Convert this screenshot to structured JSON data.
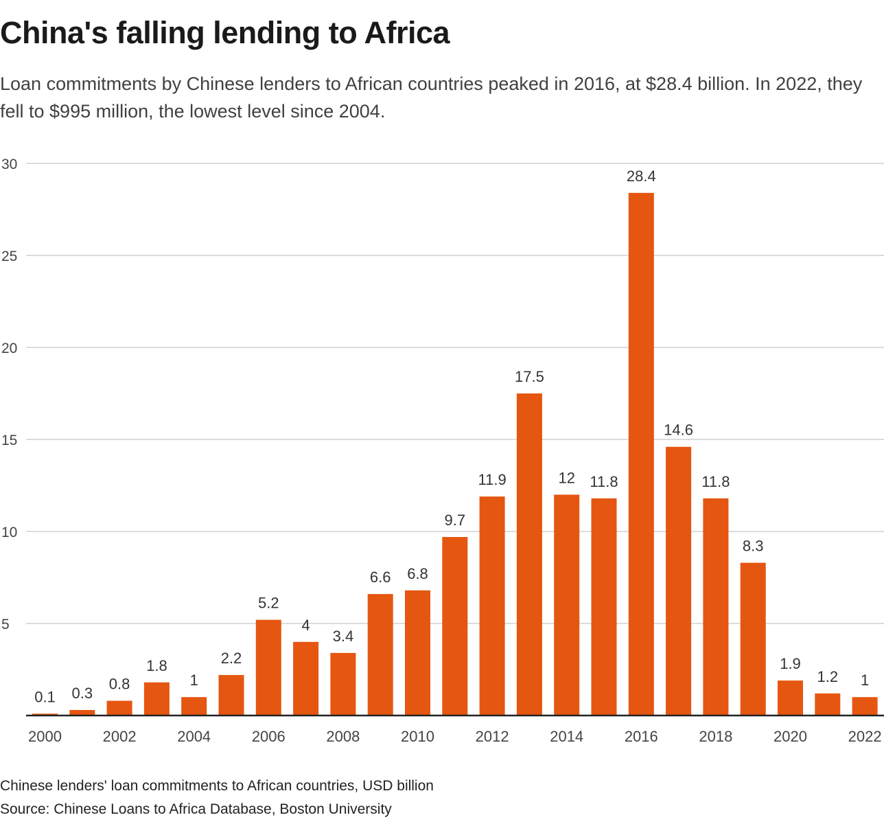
{
  "title": "China's falling lending to Africa",
  "subtitle": "Loan commitments by Chinese lenders to African countries peaked in 2016, at $28.4 billion. In 2022, they fell to $995 million, the lowest level since 2004.",
  "footnote": "Chinese lenders' loan commitments to African countries, USD billion",
  "source": "Source: Chinese Loans to Africa Database, Boston University",
  "chart_data": {
    "type": "bar",
    "categories": [
      "2000",
      "2001",
      "2002",
      "2003",
      "2004",
      "2005",
      "2006",
      "2007",
      "2008",
      "2009",
      "2010",
      "2011",
      "2012",
      "2013",
      "2014",
      "2015",
      "2016",
      "2017",
      "2018",
      "2019",
      "2020",
      "2021",
      "2022"
    ],
    "values": [
      0.1,
      0.3,
      0.8,
      1.8,
      1,
      2.2,
      5.2,
      4,
      3.4,
      6.6,
      6.8,
      9.7,
      11.9,
      17.5,
      12,
      11.8,
      28.4,
      14.6,
      11.8,
      8.3,
      1.9,
      1.2,
      1
    ],
    "value_labels": [
      "0.1",
      "0.3",
      "0.8",
      "1.8",
      "1",
      "2.2",
      "5.2",
      "4",
      "3.4",
      "6.6",
      "6.8",
      "9.7",
      "11.9",
      "17.5",
      "12",
      "11.8",
      "28.4",
      "14.6",
      "11.8",
      "8.3",
      "1.9",
      "1.2",
      "1"
    ],
    "x_tick_labels": [
      "2000",
      "2002",
      "2004",
      "2006",
      "2008",
      "2010",
      "2012",
      "2014",
      "2016",
      "2018",
      "2020",
      "2022"
    ],
    "y_ticks": [
      5,
      10,
      15,
      20,
      25,
      30
    ],
    "ylim": [
      0,
      30
    ],
    "grid": true,
    "bar_color": "#e55610",
    "xlabel": "",
    "ylabel": ""
  }
}
